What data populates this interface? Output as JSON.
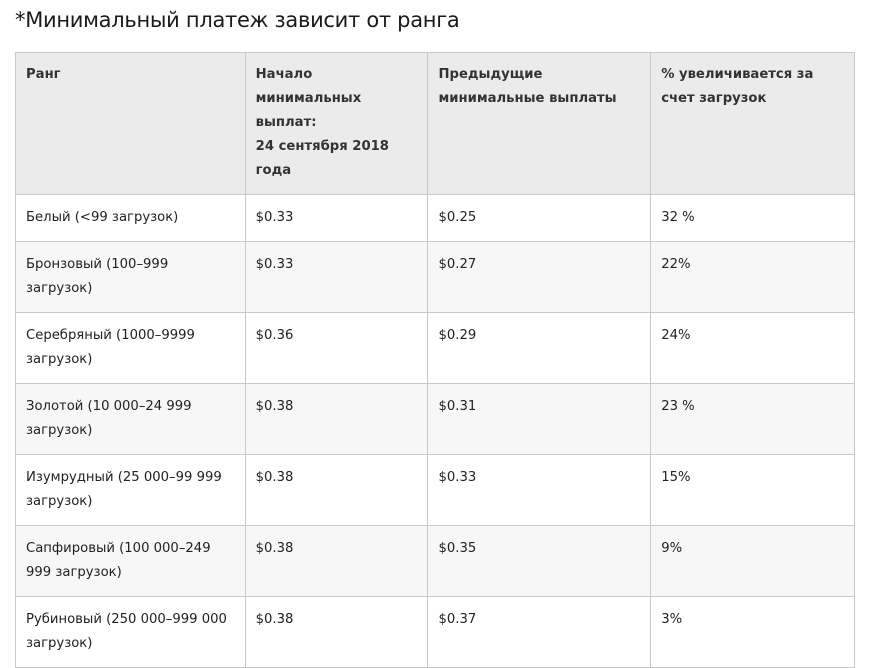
{
  "title": "*Минимальный платеж зависит от ранга",
  "table": {
    "headers": [
      "Ранг",
      "Начало минимальных выплат:\n24 сентября 2018 года",
      "Предыдущие минимальные выплаты",
      "% увеличивается за счет загрузок"
    ],
    "rows": [
      [
        "Белый (<99 загрузок)",
        "$0.33",
        "$0.25",
        "32 %"
      ],
      [
        "Бронзовый (100–999 загрузок)",
        "$0.33",
        "$0.27",
        "22%"
      ],
      [
        "Серебряный (1000–9999 загрузок)",
        "$0.36",
        "$0.29",
        "24%"
      ],
      [
        "Золотой (10 000–24 999 загрузок)",
        "$0.38",
        "$0.31",
        "23 %"
      ],
      [
        "Изумрудный (25 000–99 999 загрузок)",
        "$0.38",
        "$0.33",
        "15%"
      ],
      [
        "Сапфировый (100 000–249 999 загрузок)",
        "$0.38",
        "$0.35",
        "9%"
      ],
      [
        "Рубиновый (250 000–999 000 загрузок)",
        "$0.38",
        "$0.37",
        "3%"
      ]
    ]
  }
}
